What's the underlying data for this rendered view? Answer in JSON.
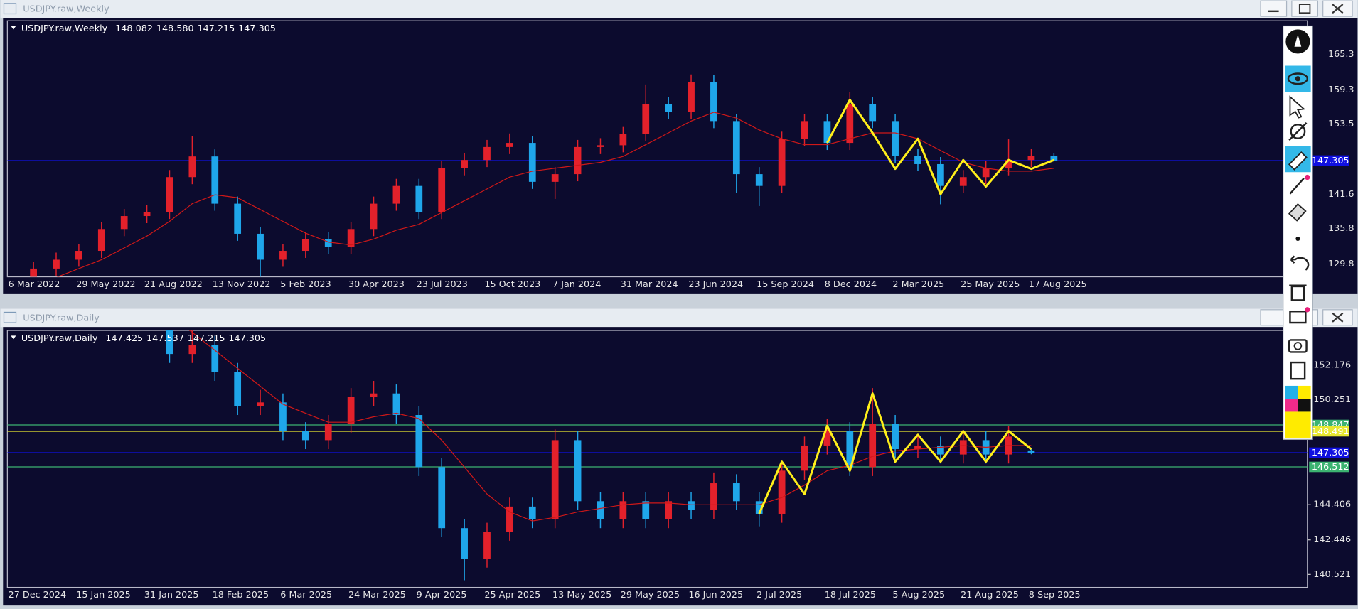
{
  "chart_data": [
    {
      "type": "candlestick",
      "title": "USDJPY.raw,Weekly",
      "ohlc_labels": [
        "148.082",
        "148.580",
        "147.215",
        "147.305"
      ],
      "categories": [
        "6 Mar 2022",
        null,
        null,
        "29 May 2022",
        null,
        null,
        "21 Aug 2022",
        null,
        null,
        "13 Nov 2022",
        null,
        null,
        "5 Feb 2023",
        null,
        null,
        "30 Apr 2023",
        null,
        null,
        "23 Jul 2023",
        null,
        null,
        "15 Oct 2023",
        null,
        null,
        "7 Jan 2024",
        null,
        null,
        "31 Mar 2024",
        null,
        null,
        "23 Jun 2024",
        null,
        null,
        "15 Sep 2024",
        null,
        null,
        "8 Dec 2024",
        null,
        null,
        "2 Mar 2025",
        null,
        null,
        "25 May 2025",
        null,
        null,
        "17 Aug 2025",
        null
      ],
      "open": [
        124.5,
        126,
        129,
        130.5,
        132,
        135.7,
        137.9,
        138.6,
        144.5,
        148,
        140,
        134.9,
        130.5,
        132,
        134,
        132.7,
        135.7,
        140,
        143,
        138.6,
        146,
        147.4,
        149.6,
        150.3,
        143.7,
        145,
        149.6,
        149.9,
        151.8,
        156.9,
        155.5,
        160.6,
        154,
        145,
        143,
        151,
        154,
        150.3,
        156.9,
        154,
        148.1,
        146.7,
        143,
        144.5,
        146,
        147.4,
        148.082
      ],
      "high": [
        127.2,
        130.2,
        131.7,
        133.2,
        136.9,
        139.1,
        139.8,
        145.7,
        151.5,
        149.2,
        141.2,
        136.1,
        133.2,
        135.2,
        135.2,
        136.9,
        141.2,
        144.2,
        144.2,
        147.2,
        148.6,
        150.8,
        151.9,
        151.5,
        146.2,
        150.8,
        151.1,
        153,
        160.2,
        158.1,
        161.9,
        161.8,
        155.2,
        146.2,
        152.2,
        155.2,
        155.2,
        158.9,
        158.1,
        155.2,
        149.3,
        147.9,
        145.7,
        147.2,
        150.9,
        149.3,
        148.58
      ],
      "low": [
        123.3,
        124.8,
        127.8,
        129.3,
        130.8,
        134.5,
        136.7,
        137.4,
        143.3,
        138.8,
        133.7,
        127.5,
        129.3,
        130.8,
        131.5,
        131.5,
        134.5,
        138.8,
        137.4,
        137.4,
        144.8,
        146.2,
        148.4,
        142.5,
        140.8,
        143.8,
        148.4,
        148.7,
        150.6,
        154.3,
        154.3,
        152.8,
        141.8,
        139.6,
        141.8,
        149.8,
        149.1,
        149.1,
        152.8,
        146.9,
        145.5,
        139.9,
        141.8,
        143.3,
        144.8,
        146.2,
        147.215
      ],
      "close": [
        126,
        129,
        130.5,
        132,
        135.7,
        137.9,
        138.6,
        144.5,
        148,
        140,
        134.9,
        130.5,
        132,
        134,
        132.7,
        135.7,
        140,
        143,
        138.6,
        146,
        147.4,
        149.6,
        150.3,
        143.7,
        145,
        149.6,
        149.9,
        151.8,
        156.9,
        155.5,
        160.6,
        154,
        145,
        143,
        151,
        154,
        150.3,
        156.9,
        154,
        148.1,
        146.7,
        143,
        144.5,
        146,
        147.4,
        148.082,
        147.305
      ],
      "up_color": "#e3212b",
      "down_color": "#1fa6ea",
      "moving_average": {
        "color": "#d01818",
        "values": [
          125,
          126,
          127.5,
          129,
          130.5,
          132.5,
          134.5,
          137,
          140,
          141.5,
          141,
          139,
          137,
          135,
          133.5,
          133,
          134,
          135.5,
          136.5,
          138.5,
          140.5,
          142.5,
          144.5,
          145.5,
          146,
          146.5,
          147,
          148,
          150,
          152,
          154,
          155.5,
          154.5,
          152.5,
          151,
          150,
          150,
          151,
          152,
          152,
          151,
          149,
          147,
          146,
          145.5,
          145.5,
          146
        ]
      },
      "zigzag": {
        "color": "#ffef1a",
        "values": [
          null,
          null,
          null,
          null,
          null,
          null,
          null,
          null,
          null,
          null,
          null,
          null,
          null,
          null,
          null,
          null,
          null,
          null,
          null,
          null,
          null,
          null,
          null,
          null,
          null,
          null,
          null,
          null,
          null,
          null,
          null,
          null,
          null,
          null,
          null,
          null,
          150.3,
          157.6,
          152,
          145.9,
          151,
          141.6,
          147.4,
          142.9,
          147.4,
          145.9,
          147.4
        ]
      },
      "price_line": {
        "value": 147.305,
        "color": "#1010e0"
      },
      "levels": [],
      "ylim": [
        127.6,
        171.0
      ],
      "yticks": [
        129.8,
        135.8,
        141.6,
        153.5,
        159.3,
        165.3
      ],
      "grid": false
    },
    {
      "type": "candlestick",
      "title": "USDJPY.raw,Daily",
      "ohlc_labels": [
        "147.425",
        "147.537",
        "147.215",
        "147.305"
      ],
      "categories": [
        "27 Dec 2024",
        null,
        null,
        "15 Jan 2025",
        null,
        null,
        "31 Jan 2025",
        null,
        null,
        "18 Feb 2025",
        null,
        null,
        "6 Mar 2025",
        null,
        null,
        "24 Mar 2025",
        null,
        null,
        "9 Apr 2025",
        null,
        null,
        "25 Apr 2025",
        null,
        null,
        "13 May 2025",
        null,
        null,
        "29 May 2025",
        null,
        null,
        "16 Jun 2025",
        null,
        null,
        "2 Jul 2025",
        null,
        null,
        "18 Jul 2025",
        null,
        null,
        "5 Aug 2025",
        null,
        null,
        "21 Aug 2025",
        null,
        null,
        "8 Sep 2025"
      ],
      "open": [
        157.2,
        157.5,
        157.8,
        157,
        156.5,
        156,
        155.5,
        155,
        152.8,
        153.3,
        151.8,
        149.9,
        150.1,
        148.5,
        148,
        148.9,
        150.4,
        150.6,
        149.4,
        146.5,
        143.1,
        141.4,
        142.9,
        144.3,
        143.6,
        148,
        144.6,
        143.6,
        144.6,
        143.6,
        144.6,
        144.1,
        145.6,
        144.6,
        143.9,
        146.3,
        147.7,
        148.5,
        146.5,
        148.9,
        147.5,
        147.7,
        147.2,
        148,
        147.2,
        147.425
      ],
      "high": [
        158,
        158.3,
        158.3,
        157.5,
        157,
        156.5,
        156,
        155.5,
        154.2,
        153.8,
        152.3,
        150.8,
        150.6,
        149,
        149.4,
        150.9,
        151.3,
        151.1,
        149.9,
        147,
        143.6,
        143.4,
        144.8,
        144.8,
        148.6,
        148.5,
        145.1,
        145.1,
        145.1,
        145.1,
        145.1,
        146.2,
        146.1,
        145.1,
        146.8,
        148.2,
        149.2,
        149,
        150.9,
        149.4,
        148.2,
        148.2,
        148.5,
        148.5,
        148.8,
        147.537
      ],
      "low": [
        156.7,
        157,
        156.5,
        156,
        155.5,
        155,
        154.5,
        152.3,
        152.3,
        151.3,
        149.4,
        149.4,
        148,
        147.5,
        147.5,
        148.4,
        149.9,
        148.9,
        146,
        142.6,
        140.2,
        140.9,
        142.4,
        143.1,
        143.1,
        144.1,
        143.1,
        143.1,
        143.1,
        143.1,
        143.6,
        143.6,
        144.1,
        143.2,
        143.4,
        145.8,
        147.2,
        146,
        146,
        147,
        147,
        146.7,
        146.7,
        146.7,
        146.7,
        147.215
      ],
      "close": [
        157.5,
        157.8,
        157,
        156.5,
        156,
        155.5,
        155,
        152.8,
        153.3,
        151.8,
        149.9,
        150.1,
        148.5,
        148,
        148.9,
        150.4,
        150.6,
        149.4,
        146.5,
        143.1,
        141.4,
        142.9,
        144.3,
        143.6,
        148,
        144.6,
        143.6,
        144.6,
        143.6,
        144.6,
        144.1,
        145.6,
        144.6,
        143.9,
        146.3,
        147.7,
        148.5,
        146.5,
        148.9,
        147.5,
        147.7,
        147.2,
        148,
        147.2,
        148.2,
        147.305
      ],
      "up_color": "#e3212b",
      "down_color": "#1fa6ea",
      "moving_average": {
        "color": "#d01818",
        "values": [
          158,
          158,
          157.8,
          157.5,
          157,
          156.5,
          156,
          155,
          154,
          153,
          152,
          151,
          150,
          149.5,
          149,
          149,
          149.3,
          149.5,
          149.2,
          148,
          146.5,
          145,
          144,
          143.5,
          143.7,
          144,
          144.2,
          144.4,
          144.5,
          144.5,
          144.4,
          144.4,
          144.4,
          144.4,
          144.8,
          145.5,
          146.3,
          146.6,
          147.1,
          147.4,
          147.5,
          147.6,
          147.7,
          147.6,
          147.7,
          147.7
        ]
      },
      "zigzag": {
        "color": "#ffef1a",
        "values": [
          null,
          null,
          null,
          null,
          null,
          null,
          null,
          null,
          null,
          null,
          null,
          null,
          null,
          null,
          null,
          null,
          null,
          null,
          null,
          null,
          null,
          null,
          null,
          null,
          null,
          null,
          null,
          null,
          null,
          null,
          null,
          null,
          null,
          143.9,
          146.8,
          145,
          148.8,
          146.3,
          150.6,
          146.8,
          148.3,
          146.8,
          148.5,
          146.8,
          148.5,
          147.5
        ]
      },
      "price_line": {
        "value": 147.305,
        "color": "#1010e0"
      },
      "levels": [
        {
          "value": 148.847,
          "color": "#3cb371"
        },
        {
          "value": 148.491,
          "color": "#e8e830"
        },
        {
          "value": 146.512,
          "color": "#3cb371"
        }
      ],
      "ylim": [
        139.8,
        154.11
      ],
      "yticks": [
        140.521,
        142.446,
        144.406,
        150.251,
        152.176
      ],
      "grid": false
    }
  ]
}
